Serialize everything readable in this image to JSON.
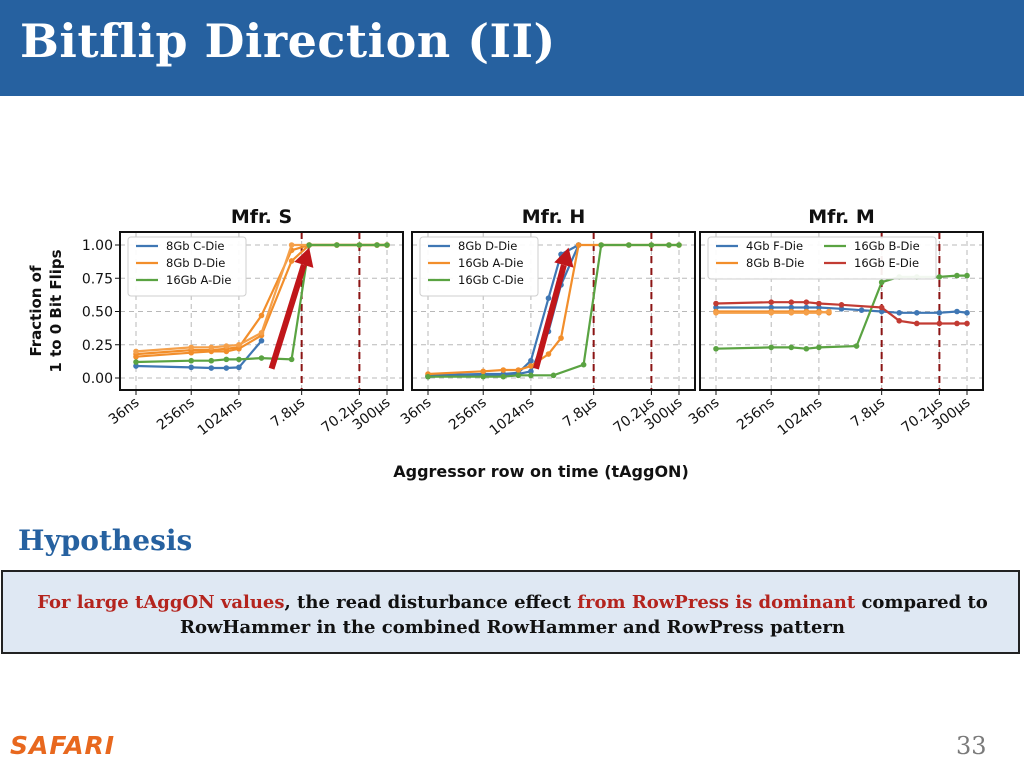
{
  "slide": {
    "title": "Bitflip Direction (II)",
    "hypothesis_heading": "Hypothesis",
    "hypothesis": {
      "part1": "For large tAggON values",
      "part2": ", the read disturbance effect ",
      "part3": "from RowPress is dominant",
      "part4": " compared to",
      "line2": "RowHammer in the combined RowHammer and RowPress pattern"
    },
    "logo": "SAFARI",
    "page_number": "33",
    "colors": {
      "title_bar": "#2661a0",
      "highlight": "#b4241e",
      "box_bg": "#dfe8f3",
      "logo": "#e8681e",
      "arrow": "#c0161a"
    }
  },
  "chart_data": {
    "type": "line",
    "ylabel_line1": "Fraction of",
    "ylabel_line2": "1 to 0 Bit Flips",
    "xlabel": "Aggressor row on time (tAggON)",
    "ylim": [
      -0.05,
      1.05
    ],
    "yticks": [
      "0.00",
      "0.25",
      "0.50",
      "0.75",
      "1.00"
    ],
    "ytick_values": [
      0,
      0.25,
      0.5,
      0.75,
      1.0
    ],
    "xticks": [
      "36ns",
      "256ns",
      "1024ns",
      "7.8µs",
      "70.2µs",
      "300µs"
    ],
    "xtick_positions": [
      0,
      0.22,
      0.41,
      0.66,
      0.89,
      1.0
    ],
    "grid": true,
    "reference_lines": [
      0.66,
      0.89
    ],
    "panels": [
      {
        "title": "Mfr. S",
        "legend_cols": 1,
        "arrow": [
          [
            0.54,
            0.07
          ],
          [
            0.69,
            0.98
          ]
        ],
        "series": [
          {
            "name": "8Gb C-Die",
            "color": "#3f77b4",
            "points": [
              [
                0.0,
                0.09
              ],
              [
                0.22,
                0.08
              ],
              [
                0.3,
                0.075
              ],
              [
                0.36,
                0.075
              ],
              [
                0.41,
                0.08
              ],
              [
                0.5,
                0.28
              ]
            ]
          },
          {
            "name": "8Gb D-Die",
            "color": "#f28e2b",
            "points": [
              [
                0.0,
                0.18
              ],
              [
                0.22,
                0.21
              ],
              [
                0.3,
                0.21
              ],
              [
                0.36,
                0.22
              ],
              [
                0.41,
                0.23
              ],
              [
                0.5,
                0.47
              ],
              [
                0.62,
                0.96
              ],
              [
                0.69,
                1.0
              ],
              [
                0.8,
                1.0
              ],
              [
                0.89,
                1.0
              ],
              [
                0.96,
                1.0
              ],
              [
                1.0,
                1.0
              ]
            ]
          },
          {
            "name": "8Gb D-Die",
            "color": "#f28e2b",
            "points": [
              [
                0.0,
                0.16
              ],
              [
                0.22,
                0.19
              ],
              [
                0.3,
                0.2
              ],
              [
                0.36,
                0.2
              ],
              [
                0.41,
                0.22
              ],
              [
                0.5,
                0.32
              ],
              [
                0.62,
                0.88
              ],
              [
                0.69,
                1.0
              ],
              [
                0.8,
                1.0
              ],
              [
                0.89,
                1.0
              ],
              [
                0.96,
                1.0
              ],
              [
                1.0,
                1.0
              ]
            ]
          },
          {
            "name": "8Gb D-Die",
            "color": "#f5a04a",
            "points": [
              [
                0.0,
                0.2
              ],
              [
                0.22,
                0.23
              ],
              [
                0.3,
                0.23
              ],
              [
                0.36,
                0.24
              ],
              [
                0.41,
                0.25
              ],
              [
                0.5,
                0.34
              ],
              [
                0.62,
                1.0
              ],
              [
                0.69,
                1.0
              ],
              [
                0.8,
                1.0
              ],
              [
                0.89,
                1.0
              ],
              [
                0.96,
                1.0
              ],
              [
                1.0,
                1.0
              ]
            ]
          },
          {
            "name": "16Gb A-Die",
            "color": "#5aa342",
            "points": [
              [
                0.0,
                0.12
              ],
              [
                0.22,
                0.13
              ],
              [
                0.3,
                0.13
              ],
              [
                0.36,
                0.14
              ],
              [
                0.41,
                0.14
              ],
              [
                0.5,
                0.15
              ],
              [
                0.62,
                0.14
              ],
              [
                0.69,
                1.0
              ],
              [
                0.8,
                1.0
              ],
              [
                0.89,
                1.0
              ],
              [
                0.96,
                1.0
              ],
              [
                1.0,
                1.0
              ]
            ]
          }
        ]
      },
      {
        "title": "Mfr. H",
        "legend_cols": 1,
        "arrow": [
          [
            0.43,
            0.07
          ],
          [
            0.56,
            0.98
          ]
        ],
        "series": [
          {
            "name": "8Gb D-Die",
            "color": "#3f77b4",
            "points": [
              [
                0.0,
                0.02
              ],
              [
                0.22,
                0.03
              ],
              [
                0.3,
                0.03
              ],
              [
                0.36,
                0.04
              ],
              [
                0.41,
                0.13
              ],
              [
                0.48,
                0.6
              ],
              [
                0.53,
                0.93
              ],
              [
                0.6,
                1.0
              ]
            ]
          },
          {
            "name": "8Gb D-Die",
            "color": "#3f77b4",
            "points": [
              [
                0.0,
                0.01
              ],
              [
                0.22,
                0.02
              ],
              [
                0.3,
                0.02
              ],
              [
                0.36,
                0.03
              ],
              [
                0.41,
                0.05
              ],
              [
                0.48,
                0.35
              ],
              [
                0.53,
                0.7
              ],
              [
                0.6,
                1.0
              ]
            ]
          },
          {
            "name": "16Gb A-Die",
            "color": "#f28e2b",
            "points": [
              [
                0.0,
                0.03
              ],
              [
                0.22,
                0.05
              ],
              [
                0.3,
                0.06
              ],
              [
                0.36,
                0.06
              ],
              [
                0.41,
                0.09
              ],
              [
                0.48,
                0.18
              ],
              [
                0.53,
                0.3
              ],
              [
                0.6,
                1.0
              ],
              [
                0.69,
                1.0
              ],
              [
                0.8,
                1.0
              ],
              [
                0.89,
                1.0
              ],
              [
                0.96,
                1.0
              ],
              [
                1.0,
                1.0
              ]
            ]
          },
          {
            "name": "16Gb C-Die",
            "color": "#5aa342",
            "points": [
              [
                0.0,
                0.01
              ],
              [
                0.22,
                0.01
              ],
              [
                0.3,
                0.01
              ],
              [
                0.36,
                0.02
              ],
              [
                0.41,
                0.02
              ],
              [
                0.5,
                0.02
              ],
              [
                0.62,
                0.1
              ],
              [
                0.69,
                1.0
              ],
              [
                0.8,
                1.0
              ],
              [
                0.89,
                1.0
              ],
              [
                0.96,
                1.0
              ],
              [
                1.0,
                1.0
              ]
            ]
          }
        ]
      },
      {
        "title": "Mfr. M",
        "legend_cols": 2,
        "arrow": null,
        "series": [
          {
            "name": "4Gb F-Die",
            "color": "#3f77b4",
            "points": [
              [
                0.0,
                0.53
              ],
              [
                0.22,
                0.53
              ],
              [
                0.3,
                0.53
              ],
              [
                0.36,
                0.53
              ],
              [
                0.41,
                0.53
              ],
              [
                0.5,
                0.52
              ],
              [
                0.58,
                0.51
              ],
              [
                0.66,
                0.5
              ],
              [
                0.73,
                0.49
              ],
              [
                0.8,
                0.49
              ],
              [
                0.89,
                0.49
              ],
              [
                0.96,
                0.5
              ],
              [
                1.0,
                0.49
              ]
            ]
          },
          {
            "name": "8Gb B-Die",
            "color": "#f28e2b",
            "points": [
              [
                0.0,
                0.5
              ],
              [
                0.22,
                0.5
              ],
              [
                0.3,
                0.5
              ],
              [
                0.36,
                0.5
              ],
              [
                0.41,
                0.5
              ],
              [
                0.45,
                0.49
              ]
            ]
          },
          {
            "name": "8Gb B-Die",
            "color": "#f5a04a",
            "points": [
              [
                0.0,
                0.49
              ],
              [
                0.22,
                0.49
              ],
              [
                0.3,
                0.49
              ],
              [
                0.36,
                0.49
              ],
              [
                0.41,
                0.49
              ],
              [
                0.45,
                0.5
              ]
            ]
          },
          {
            "name": "16Gb B-Die",
            "color": "#5aa342",
            "points": [
              [
                0.0,
                0.22
              ],
              [
                0.22,
                0.23
              ],
              [
                0.3,
                0.23
              ],
              [
                0.36,
                0.22
              ],
              [
                0.41,
                0.23
              ],
              [
                0.56,
                0.24
              ],
              [
                0.66,
                0.72
              ],
              [
                0.73,
                0.76
              ],
              [
                0.8,
                0.76
              ],
              [
                0.89,
                0.76
              ],
              [
                0.96,
                0.77
              ],
              [
                1.0,
                0.77
              ]
            ]
          },
          {
            "name": "16Gb E-Die",
            "color": "#c23b33",
            "points": [
              [
                0.0,
                0.56
              ],
              [
                0.22,
                0.57
              ],
              [
                0.3,
                0.57
              ],
              [
                0.36,
                0.57
              ],
              [
                0.41,
                0.56
              ],
              [
                0.5,
                0.55
              ],
              [
                0.66,
                0.53
              ],
              [
                0.73,
                0.43
              ],
              [
                0.8,
                0.41
              ],
              [
                0.89,
                0.41
              ],
              [
                0.96,
                0.41
              ],
              [
                1.0,
                0.41
              ]
            ]
          }
        ]
      }
    ]
  }
}
